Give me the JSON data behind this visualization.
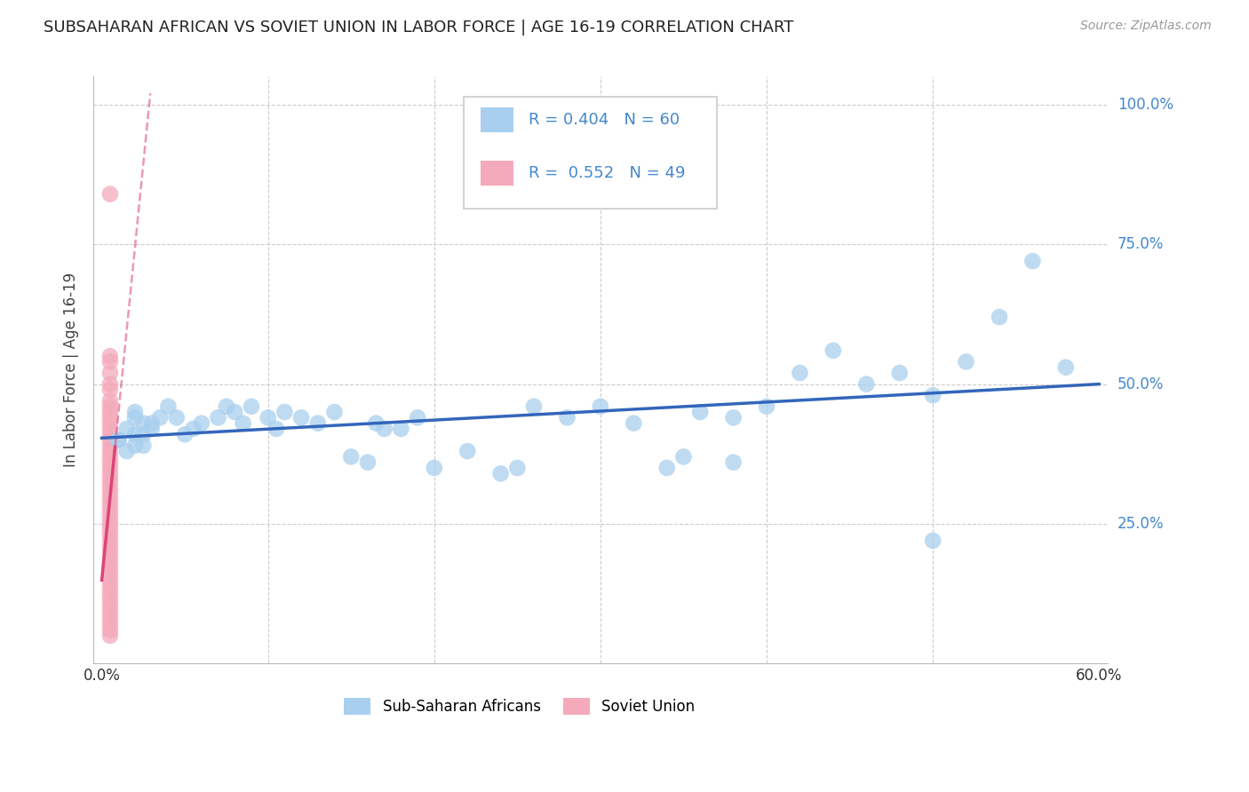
{
  "title": "SUBSAHARAN AFRICAN VS SOVIET UNION IN LABOR FORCE | AGE 16-19 CORRELATION CHART",
  "source": "Source: ZipAtlas.com",
  "ylabel": "In Labor Force | Age 16-19",
  "xlim": [
    -0.005,
    0.605
  ],
  "ylim": [
    0.0,
    1.05
  ],
  "blue_R": 0.404,
  "blue_N": 60,
  "pink_R": 0.552,
  "pink_N": 49,
  "blue_color": "#A8CFEE",
  "pink_color": "#F4AABB",
  "blue_line_color": "#3366BB",
  "pink_line_color": "#DD4477",
  "background_color": "#FFFFFF",
  "grid_color": "#CCCCCC",
  "legend_label_blue": "Sub-Saharan Africans",
  "legend_label_pink": "Soviet Union",
  "blue_x": [
    0.01,
    0.015,
    0.02,
    0.025,
    0.02,
    0.015,
    0.01,
    0.02,
    0.025,
    0.03,
    0.035,
    0.03,
    0.025,
    0.02,
    0.04,
    0.05,
    0.045,
    0.06,
    0.055,
    0.07,
    0.075,
    0.08,
    0.085,
    0.09,
    0.1,
    0.105,
    0.11,
    0.12,
    0.13,
    0.14,
    0.15,
    0.16,
    0.165,
    0.17,
    0.18,
    0.19,
    0.2,
    0.22,
    0.24,
    0.25,
    0.26,
    0.28,
    0.3,
    0.32,
    0.34,
    0.35,
    0.36,
    0.38,
    0.38,
    0.4,
    0.42,
    0.44,
    0.46,
    0.48,
    0.5,
    0.5,
    0.52,
    0.54,
    0.56,
    0.58
  ],
  "blue_y": [
    0.4,
    0.42,
    0.41,
    0.43,
    0.44,
    0.38,
    0.4,
    0.39,
    0.41,
    0.42,
    0.44,
    0.43,
    0.39,
    0.45,
    0.46,
    0.41,
    0.44,
    0.43,
    0.42,
    0.44,
    0.46,
    0.45,
    0.43,
    0.46,
    0.44,
    0.42,
    0.45,
    0.44,
    0.43,
    0.45,
    0.37,
    0.36,
    0.43,
    0.42,
    0.42,
    0.44,
    0.35,
    0.38,
    0.34,
    0.35,
    0.46,
    0.44,
    0.46,
    0.43,
    0.35,
    0.37,
    0.45,
    0.44,
    0.36,
    0.46,
    0.52,
    0.56,
    0.5,
    0.52,
    0.48,
    0.22,
    0.54,
    0.62,
    0.72,
    0.53
  ],
  "pink_x": [
    0.005,
    0.005,
    0.005,
    0.005,
    0.005,
    0.005,
    0.005,
    0.005,
    0.005,
    0.005,
    0.005,
    0.005,
    0.005,
    0.005,
    0.005,
    0.005,
    0.005,
    0.005,
    0.005,
    0.005,
    0.005,
    0.005,
    0.005,
    0.005,
    0.005,
    0.005,
    0.005,
    0.005,
    0.005,
    0.005,
    0.005,
    0.005,
    0.005,
    0.005,
    0.005,
    0.005,
    0.005,
    0.005,
    0.005,
    0.005,
    0.005,
    0.005,
    0.005,
    0.005,
    0.005,
    0.005,
    0.005,
    0.005,
    0.005
  ],
  "pink_y": [
    0.84,
    0.55,
    0.54,
    0.52,
    0.5,
    0.49,
    0.47,
    0.46,
    0.45,
    0.44,
    0.43,
    0.42,
    0.41,
    0.4,
    0.39,
    0.38,
    0.37,
    0.36,
    0.35,
    0.34,
    0.33,
    0.32,
    0.31,
    0.3,
    0.29,
    0.28,
    0.27,
    0.26,
    0.25,
    0.24,
    0.23,
    0.22,
    0.21,
    0.2,
    0.19,
    0.18,
    0.17,
    0.16,
    0.15,
    0.14,
    0.13,
    0.12,
    0.11,
    0.1,
    0.09,
    0.08,
    0.07,
    0.06,
    0.05
  ],
  "blue_line_x0": 0.0,
  "blue_line_x1": 0.6,
  "blue_line_y0": 0.395,
  "blue_line_y1": 0.535,
  "pink_line_solid_x0": 0.0,
  "pink_line_solid_x1": 0.007,
  "pink_line_dash_x0": 0.0,
  "pink_line_dash_x1": 0.07
}
